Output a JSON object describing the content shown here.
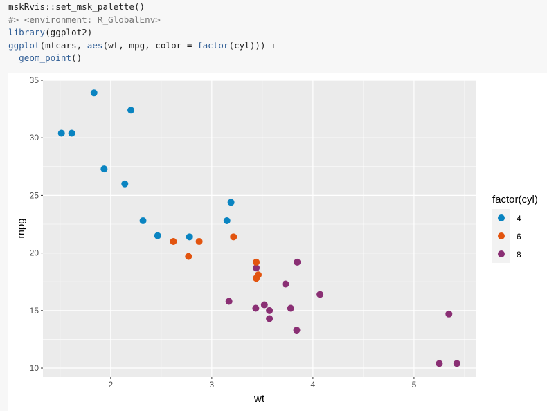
{
  "code_lines": [
    [
      {
        "t": "mskRvis::set_msk_palette()",
        "c": "pl"
      }
    ],
    [
      {
        "t": "#> <environment: R_GlobalEnv>",
        "c": "cm"
      }
    ],
    [
      {
        "t": "library",
        "c": "fn"
      },
      {
        "t": "(ggplot2)",
        "c": "pl"
      }
    ],
    [
      {
        "t": "ggplot",
        "c": "fn"
      },
      {
        "t": "(mtcars, ",
        "c": "pl"
      },
      {
        "t": "aes",
        "c": "fn"
      },
      {
        "t": "(wt, mpg, color = ",
        "c": "pl"
      },
      {
        "t": "factor",
        "c": "fn"
      },
      {
        "t": "(cyl))) +",
        "c": "pl"
      }
    ],
    [
      {
        "t": "  ",
        "c": "pl"
      },
      {
        "t": "geom_point",
        "c": "fn"
      },
      {
        "t": "()",
        "c": "pl"
      }
    ]
  ],
  "chart_data": {
    "type": "scatter",
    "xlabel": "wt",
    "ylabel": "mpg",
    "xlim": [
      1.33,
      5.61
    ],
    "ylim": [
      9.22,
      35.06
    ],
    "xticks": [
      2,
      3,
      4,
      5
    ],
    "yticks": [
      10,
      15,
      20,
      25,
      30,
      35
    ],
    "grid": true,
    "legend": {
      "title": "factor(cyl)",
      "position": "right",
      "entries": [
        "4",
        "6",
        "8"
      ]
    },
    "colors": {
      "4": "#0a84c1",
      "6": "#e2540f",
      "8": "#8a2f74"
    },
    "points": [
      {
        "wt": 2.62,
        "mpg": 21.0,
        "cyl": "6"
      },
      {
        "wt": 2.875,
        "mpg": 21.0,
        "cyl": "6"
      },
      {
        "wt": 2.32,
        "mpg": 22.8,
        "cyl": "4"
      },
      {
        "wt": 3.215,
        "mpg": 21.4,
        "cyl": "6"
      },
      {
        "wt": 3.44,
        "mpg": 18.7,
        "cyl": "8"
      },
      {
        "wt": 3.46,
        "mpg": 18.1,
        "cyl": "6"
      },
      {
        "wt": 3.57,
        "mpg": 14.3,
        "cyl": "8"
      },
      {
        "wt": 3.19,
        "mpg": 24.4,
        "cyl": "4"
      },
      {
        "wt": 3.15,
        "mpg": 22.8,
        "cyl": "4"
      },
      {
        "wt": 3.44,
        "mpg": 19.2,
        "cyl": "6"
      },
      {
        "wt": 3.44,
        "mpg": 17.8,
        "cyl": "6"
      },
      {
        "wt": 4.07,
        "mpg": 16.4,
        "cyl": "8"
      },
      {
        "wt": 3.73,
        "mpg": 17.3,
        "cyl": "8"
      },
      {
        "wt": 3.78,
        "mpg": 15.2,
        "cyl": "8"
      },
      {
        "wt": 5.25,
        "mpg": 10.4,
        "cyl": "8"
      },
      {
        "wt": 5.424,
        "mpg": 10.4,
        "cyl": "8"
      },
      {
        "wt": 5.345,
        "mpg": 14.7,
        "cyl": "8"
      },
      {
        "wt": 2.2,
        "mpg": 32.4,
        "cyl": "4"
      },
      {
        "wt": 1.615,
        "mpg": 30.4,
        "cyl": "4"
      },
      {
        "wt": 1.835,
        "mpg": 33.9,
        "cyl": "4"
      },
      {
        "wt": 2.465,
        "mpg": 21.5,
        "cyl": "4"
      },
      {
        "wt": 3.52,
        "mpg": 15.5,
        "cyl": "8"
      },
      {
        "wt": 3.435,
        "mpg": 15.2,
        "cyl": "8"
      },
      {
        "wt": 3.84,
        "mpg": 13.3,
        "cyl": "8"
      },
      {
        "wt": 3.845,
        "mpg": 19.2,
        "cyl": "8"
      },
      {
        "wt": 1.935,
        "mpg": 27.3,
        "cyl": "4"
      },
      {
        "wt": 2.14,
        "mpg": 26.0,
        "cyl": "4"
      },
      {
        "wt": 1.513,
        "mpg": 30.4,
        "cyl": "4"
      },
      {
        "wt": 3.17,
        "mpg": 15.8,
        "cyl": "8"
      },
      {
        "wt": 2.77,
        "mpg": 19.7,
        "cyl": "6"
      },
      {
        "wt": 3.57,
        "mpg": 15.0,
        "cyl": "8"
      },
      {
        "wt": 2.78,
        "mpg": 21.4,
        "cyl": "4"
      }
    ]
  }
}
